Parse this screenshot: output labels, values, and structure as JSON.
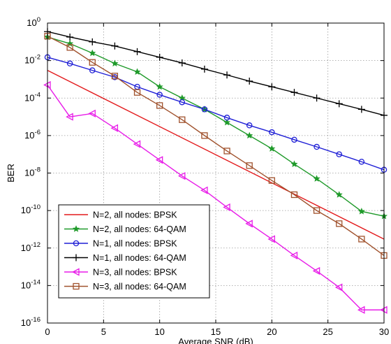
{
  "chart_data": {
    "type": "line",
    "xlabel": "Average SNR (dB)",
    "ylabel": "BER",
    "xlim": [
      0,
      30
    ],
    "ylim_log10": [
      -16,
      0
    ],
    "yscale": "log",
    "grid": true,
    "legend_position": "bottom-left",
    "x_ticks": [
      0,
      5,
      10,
      15,
      20,
      25,
      30
    ],
    "y_ticks_exponents": [
      0,
      -2,
      -4,
      -6,
      -8,
      -10,
      -12,
      -14,
      -16
    ],
    "series": [
      {
        "name": "N=2, all nodes: BPSK",
        "color": "#e31a1c",
        "marker": "none",
        "x": [
          0,
          30
        ],
        "y": [
          0.003,
          3e-12
        ]
      },
      {
        "name": "N=2, all nodes: 64-QAM",
        "color": "#1f9a2a",
        "marker": "star",
        "x": [
          0,
          2,
          4,
          6,
          8,
          10,
          12,
          14,
          16,
          18,
          20,
          22,
          24,
          26,
          28,
          30
        ],
        "y": [
          0.18,
          0.08,
          0.025,
          0.007,
          0.0025,
          0.0004,
          0.0001,
          2.5e-05,
          5e-06,
          1e-06,
          2e-07,
          3e-08,
          5e-09,
          7e-10,
          9e-11,
          5e-11
        ]
      },
      {
        "name": "N=1, all nodes: BPSK",
        "color": "#1f1fd6",
        "marker": "circle",
        "x": [
          0,
          2,
          4,
          6,
          8,
          10,
          12,
          14,
          16,
          18,
          20,
          22,
          24,
          26,
          28,
          30
        ],
        "y": [
          0.015,
          0.007,
          0.003,
          0.0013,
          0.0004,
          0.00015,
          6e-05,
          2.5e-05,
          9e-06,
          3.5e-06,
          1.5e-06,
          6e-07,
          2.5e-07,
          1e-07,
          4e-08,
          1.5e-08
        ]
      },
      {
        "name": "N=1, all nodes: 64-QAM",
        "color": "#000000",
        "marker": "plus",
        "x": [
          0,
          2,
          4,
          6,
          8,
          10,
          12,
          14,
          16,
          18,
          20,
          22,
          24,
          26,
          28,
          30
        ],
        "y": [
          0.35,
          0.18,
          0.1,
          0.06,
          0.03,
          0.015,
          0.0075,
          0.0035,
          0.0017,
          0.0008,
          0.0004,
          0.0002,
          0.0001,
          5e-05,
          2.5e-05,
          1.2e-05
        ]
      },
      {
        "name": "N=3, all nodes: BPSK",
        "color": "#e81ce8",
        "marker": "triangle-left",
        "x": [
          0,
          2,
          4,
          6,
          8,
          10,
          12,
          14,
          16,
          18,
          20,
          22,
          24,
          26,
          28,
          30
        ],
        "y": [
          0.0005,
          1e-05,
          1.5e-05,
          2.5e-06,
          3.5e-07,
          5e-08,
          7e-09,
          1.2e-09,
          1.5e-10,
          2e-11,
          3e-12,
          4e-13,
          6e-14,
          8e-15,
          5e-16,
          5e-16
        ]
      },
      {
        "name": "N=3, all nodes: 64-QAM",
        "color": "#a0522d",
        "marker": "square",
        "x": [
          0,
          2,
          4,
          6,
          8,
          10,
          12,
          14,
          16,
          18,
          20,
          22,
          24,
          26,
          28,
          30
        ],
        "y": [
          0.2,
          0.05,
          0.008,
          0.0015,
          0.0002,
          4e-05,
          7e-06,
          1e-06,
          1.5e-07,
          2.5e-08,
          4e-09,
          7e-10,
          1e-10,
          2e-11,
          3e-12,
          4e-13
        ]
      }
    ]
  }
}
